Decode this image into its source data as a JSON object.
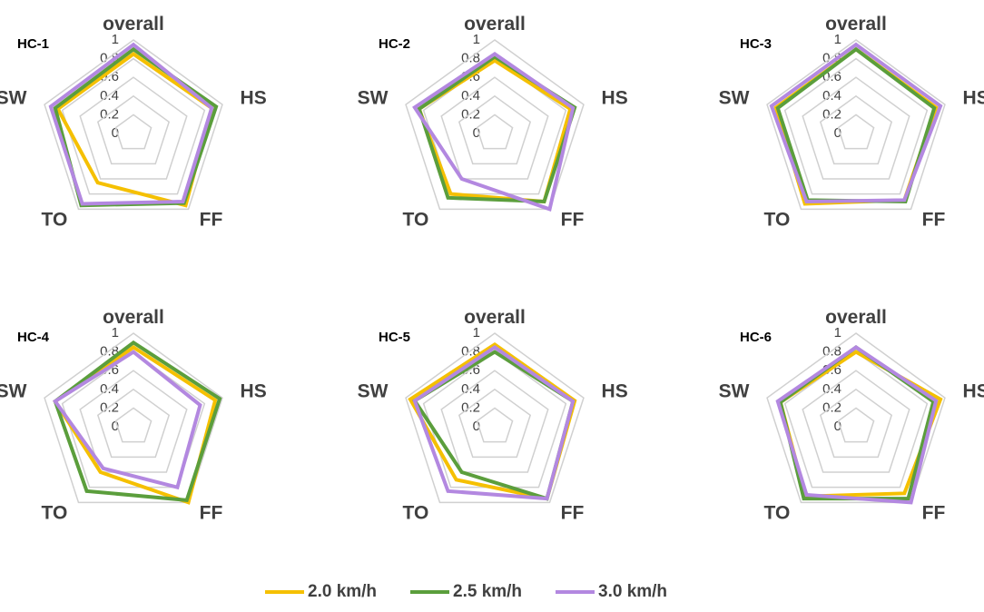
{
  "chart_data": [
    {
      "type": "radar",
      "title": "HC-1",
      "categories": [
        "overall",
        "HS",
        "FF",
        "TO",
        "SW"
      ],
      "rlim": [
        0,
        1
      ],
      "rticks": [
        0,
        0.2,
        0.4,
        0.6,
        0.8,
        1
      ],
      "series": [
        {
          "name": "2.0 km/h",
          "color": "#f5c000",
          "values": [
            0.85,
            0.88,
            0.95,
            0.65,
            0.85
          ]
        },
        {
          "name": "2.5 km/h",
          "color": "#5b9e3c",
          "values": [
            0.9,
            0.93,
            0.92,
            0.95,
            0.88
          ]
        },
        {
          "name": "3.0 km/h",
          "color": "#b388e0",
          "values": [
            0.95,
            0.88,
            0.9,
            0.93,
            0.93
          ]
        }
      ]
    },
    {
      "type": "radar",
      "title": "HC-2",
      "categories": [
        "overall",
        "HS",
        "FF",
        "TO",
        "SW"
      ],
      "rlim": [
        0,
        1
      ],
      "rticks": [
        0,
        0.2,
        0.4,
        0.6,
        0.8,
        1
      ],
      "series": [
        {
          "name": "2.0 km/h",
          "color": "#f5c000",
          "values": [
            0.78,
            0.85,
            0.9,
            0.8,
            0.85
          ]
        },
        {
          "name": "2.5 km/h",
          "color": "#5b9e3c",
          "values": [
            0.82,
            0.9,
            0.9,
            0.85,
            0.85
          ]
        },
        {
          "name": "3.0 km/h",
          "color": "#b388e0",
          "values": [
            0.85,
            0.88,
            1.0,
            0.6,
            0.9
          ]
        }
      ]
    },
    {
      "type": "radar",
      "title": "HC-3",
      "categories": [
        "overall",
        "HS",
        "FF",
        "TO",
        "SW"
      ],
      "rlim": [
        0,
        1
      ],
      "rticks": [
        0,
        0.2,
        0.4,
        0.6,
        0.8,
        1
      ],
      "series": [
        {
          "name": "2.0 km/h",
          "color": "#f5c000",
          "values": [
            0.9,
            0.9,
            0.88,
            0.93,
            0.9
          ]
        },
        {
          "name": "2.5 km/h",
          "color": "#5b9e3c",
          "values": [
            0.9,
            0.88,
            0.9,
            0.88,
            0.88
          ]
        },
        {
          "name": "3.0 km/h",
          "color": "#b388e0",
          "values": [
            0.95,
            0.95,
            0.88,
            0.9,
            0.95
          ]
        }
      ]
    },
    {
      "type": "radar",
      "title": "HC-4",
      "categories": [
        "overall",
        "HS",
        "FF",
        "TO",
        "SW"
      ],
      "rlim": [
        0,
        1
      ],
      "rticks": [
        0,
        0.2,
        0.4,
        0.6,
        0.8,
        1
      ],
      "series": [
        {
          "name": "2.0 km/h",
          "color": "#f5c000",
          "values": [
            0.85,
            0.92,
            1.0,
            0.6,
            0.88
          ]
        },
        {
          "name": "2.5 km/h",
          "color": "#5b9e3c",
          "values": [
            0.9,
            0.97,
            0.97,
            0.85,
            0.88
          ]
        },
        {
          "name": "3.0 km/h",
          "color": "#b388e0",
          "values": [
            0.8,
            0.75,
            0.8,
            0.55,
            0.88
          ]
        }
      ]
    },
    {
      "type": "radar",
      "title": "HC-5",
      "categories": [
        "overall",
        "HS",
        "FF",
        "TO",
        "SW"
      ],
      "rlim": [
        0,
        1
      ],
      "rticks": [
        0,
        0.2,
        0.4,
        0.6,
        0.8,
        1
      ],
      "series": [
        {
          "name": "2.0 km/h",
          "color": "#f5c000",
          "values": [
            0.88,
            0.9,
            0.95,
            0.7,
            0.95
          ]
        },
        {
          "name": "2.5 km/h",
          "color": "#5b9e3c",
          "values": [
            0.8,
            0.88,
            0.95,
            0.6,
            0.9
          ]
        },
        {
          "name": "3.0 km/h",
          "color": "#b388e0",
          "values": [
            0.85,
            0.88,
            0.95,
            0.85,
            0.9
          ]
        }
      ]
    },
    {
      "type": "radar",
      "title": "HC-6",
      "categories": [
        "overall",
        "HS",
        "FF",
        "TO",
        "SW"
      ],
      "rlim": [
        0,
        1
      ],
      "rticks": [
        0,
        0.2,
        0.4,
        0.6,
        0.8,
        1
      ],
      "series": [
        {
          "name": "2.0 km/h",
          "color": "#f5c000",
          "values": [
            0.8,
            0.95,
            0.88,
            0.92,
            0.85
          ]
        },
        {
          "name": "2.5 km/h",
          "color": "#5b9e3c",
          "values": [
            0.85,
            0.87,
            0.95,
            0.95,
            0.85
          ]
        },
        {
          "name": "3.0 km/h",
          "color": "#b388e0",
          "values": [
            0.85,
            0.9,
            1.0,
            0.9,
            0.88
          ]
        }
      ]
    }
  ]
}
